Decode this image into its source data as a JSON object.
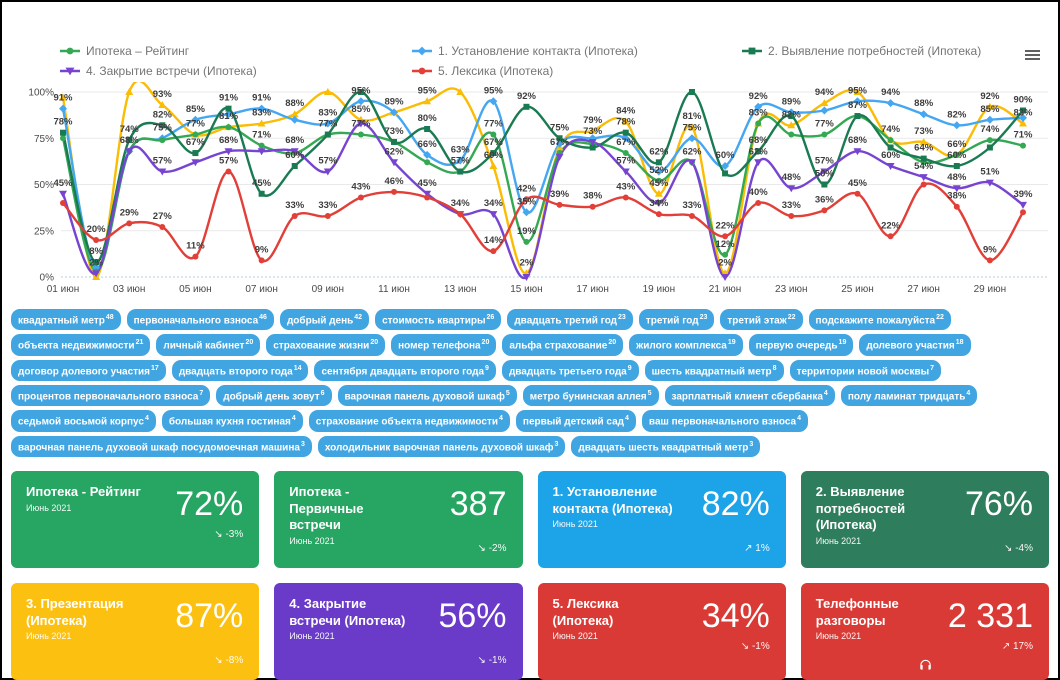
{
  "menu": {
    "icon": "hamburger-icon"
  },
  "chart_data": {
    "type": "line",
    "title": "",
    "xlabel": "",
    "ylabel": "",
    "ylim": [
      0,
      100
    ],
    "grid": true,
    "legend_position": "top",
    "y_ticks": [
      "0%",
      "25%",
      "50%",
      "75%",
      "100%"
    ],
    "x_tick_every": 2,
    "x": [
      "01 июн",
      "02 июн",
      "03 июн",
      "04 июн",
      "05 июн",
      "06 июн",
      "07 июн",
      "08 июн",
      "09 июн",
      "10 июн",
      "11 июн",
      "12 июн",
      "13 июн",
      "14 июн",
      "15 июн",
      "16 июн",
      "17 июн",
      "18 июн",
      "19 июн",
      "20 июн",
      "21 июн",
      "22 июн",
      "23 июн",
      "24 июн",
      "25 июн",
      "26 июн",
      "27 июн",
      "28 июн",
      "29 июн",
      "30 июн"
    ],
    "series": [
      {
        "name": "Ипотека – Рейтинг",
        "color": "#34a853",
        "marker": "circle",
        "values": [
          75,
          3,
          68,
          74,
          77,
          81,
          71,
          67,
          77,
          77,
          73,
          62,
          57,
          77,
          19,
          67,
          72,
          67,
          52,
          62,
          12,
          83,
          77,
          77,
          87,
          74,
          62,
          66,
          74,
          71
        ]
      },
      {
        "name": "1. Установление контакта (Ипотека)",
        "color": "#45a6f1",
        "marker": "diamond",
        "values": [
          91,
          5,
          68,
          75,
          85,
          88,
          91,
          85,
          83,
          95,
          89,
          66,
          63,
          95,
          35,
          72,
          75,
          75,
          57,
          75,
          60,
          92,
          89,
          90,
          95,
          94,
          88,
          82,
          85,
          86
        ]
      },
      {
        "name": "2. Выявление потребностей (Ипотека)",
        "color": "#1a7a52",
        "marker": "square",
        "values": [
          78,
          8,
          74,
          82,
          67,
          91,
          45,
          60,
          77,
          100,
          73,
          80,
          57,
          67,
          92,
          75,
          70,
          78,
          62,
          100,
          56,
          68,
          87,
          50,
          87,
          70,
          64,
          60,
          70,
          90
        ]
      },
      {
        "name": "3. Презентация (Ипотека)",
        "color": "#fbbc04",
        "marker": "triangle",
        "values": [
          97,
          0,
          100,
          93,
          77,
          81,
          83,
          88,
          100,
          85,
          89,
          95,
          100,
          60,
          2,
          70,
          79,
          84,
          45,
          81,
          2,
          83,
          82,
          94,
          100,
          74,
          73,
          66,
          92,
          83
        ]
      },
      {
        "name": "4. Закрытие встречи (Ипотека)",
        "color": "#7644d0",
        "marker": "triangle-down",
        "values": [
          45,
          2,
          68,
          57,
          62,
          68,
          68,
          68,
          57,
          83,
          62,
          45,
          34,
          34,
          0,
          65,
          73,
          57,
          40,
          62,
          0,
          62,
          48,
          57,
          68,
          60,
          54,
          48,
          51,
          39
        ]
      },
      {
        "name": "5. Лексика (Ипотека)",
        "color": "#e13f38",
        "marker": "circle",
        "values": [
          40,
          20,
          29,
          27,
          11,
          57,
          9,
          33,
          33,
          43,
          46,
          43,
          34,
          14,
          42,
          39,
          38,
          43,
          34,
          33,
          22,
          40,
          33,
          36,
          45,
          22,
          50,
          38,
          9,
          35
        ]
      }
    ]
  },
  "tags": {
    "color": "#41a5e2",
    "items": [
      {
        "text": "квадратный метр",
        "count": 48
      },
      {
        "text": "первоначального взноса",
        "count": 46
      },
      {
        "text": "добрый день",
        "count": 42
      },
      {
        "text": "стоимость квартиры",
        "count": 26
      },
      {
        "text": "двадцать третий год",
        "count": 23
      },
      {
        "text": "третий год",
        "count": 23
      },
      {
        "text": "третий этаж",
        "count": 22
      },
      {
        "text": "подскажите пожалуйста",
        "count": 22
      },
      {
        "text": "объекта недвижимости",
        "count": 21
      },
      {
        "text": "личный кабинет",
        "count": 20
      },
      {
        "text": "страхование жизни",
        "count": 20
      },
      {
        "text": "номер телефона",
        "count": 20
      },
      {
        "text": "альфа страхование",
        "count": 20
      },
      {
        "text": "жилого комплекса",
        "count": 19
      },
      {
        "text": "первую очередь",
        "count": 19
      },
      {
        "text": "долевого участия",
        "count": 18
      },
      {
        "text": "договор долевого участия",
        "count": 17
      },
      {
        "text": "двадцать второго года",
        "count": 14
      },
      {
        "text": "сентября двадцать второго года",
        "count": 9
      },
      {
        "text": "двадцать третьего года",
        "count": 9
      },
      {
        "text": "шесть квадратный метр",
        "count": 8
      },
      {
        "text": "территории новой москвы",
        "count": 7
      },
      {
        "text": "процентов первоначального взноса",
        "count": 7
      },
      {
        "text": "добрый день зовут",
        "count": 6
      },
      {
        "text": "варочная панель духовой шкаф",
        "count": 5
      },
      {
        "text": "метро бунинская аллея",
        "count": 5
      },
      {
        "text": "зарплатный клиент сбербанка",
        "count": 4
      },
      {
        "text": "полу ламинат тридцать",
        "count": 4
      },
      {
        "text": "седьмой восьмой корпус",
        "count": 4
      },
      {
        "text": "большая кухня гостиная",
        "count": 4
      },
      {
        "text": "страхование объекта недвижимости",
        "count": 4
      },
      {
        "text": "первый детский сад",
        "count": 4
      },
      {
        "text": "ваш первоначального взноса",
        "count": 4
      },
      {
        "text": "варочная панель духовой шкаф посудомоечная машина",
        "count": 3
      },
      {
        "text": "холодильник варочная панель духовой шкаф",
        "count": 3
      },
      {
        "text": "двадцать шесть квадратный метр",
        "count": 3
      }
    ]
  },
  "cards": [
    {
      "title": "Ипотека - Рейтинг",
      "subtitle": "Июнь 2021",
      "value": "72%",
      "trend_arrow": "↘",
      "trend": "-3%",
      "color": "#27a562"
    },
    {
      "title": "Ипотека - Первичные встречи",
      "subtitle": "Июнь 2021",
      "value": "387",
      "trend_arrow": "↘",
      "trend": "-2%",
      "color": "#27a562"
    },
    {
      "title": "1. Установление контакта (Ипотека)",
      "subtitle": "Июнь 2021",
      "value": "82%",
      "trend_arrow": "↗",
      "trend": "1%",
      "color": "#1da3e8"
    },
    {
      "title": "2. Выявление потребностей (Ипотека)",
      "subtitle": "Июнь 2021",
      "value": "76%",
      "trend_arrow": "↘",
      "trend": "-4%",
      "color": "#2e7d5c"
    },
    {
      "title": "3. Презентация (Ипотека)",
      "subtitle": "Июнь 2021",
      "value": "87%",
      "trend_arrow": "↘",
      "trend": "-8%",
      "color": "#fcc011"
    },
    {
      "title": "4. Закрытие встречи (Ипотека)",
      "subtitle": "Июнь 2021",
      "value": "56%",
      "trend_arrow": "↘",
      "trend": "-1%",
      "color": "#6a3ac8"
    },
    {
      "title": "5. Лексика (Ипотека)",
      "subtitle": "Июнь 2021",
      "value": "34%",
      "trend_arrow": "↘",
      "trend": "-1%",
      "color": "#d93a35"
    },
    {
      "title": "Телефонные разговоры",
      "subtitle": "Июнь 2021",
      "value": "2 331",
      "trend_arrow": "↗",
      "trend": "17%",
      "color": "#d93a35",
      "icon": "headphones-icon"
    }
  ]
}
